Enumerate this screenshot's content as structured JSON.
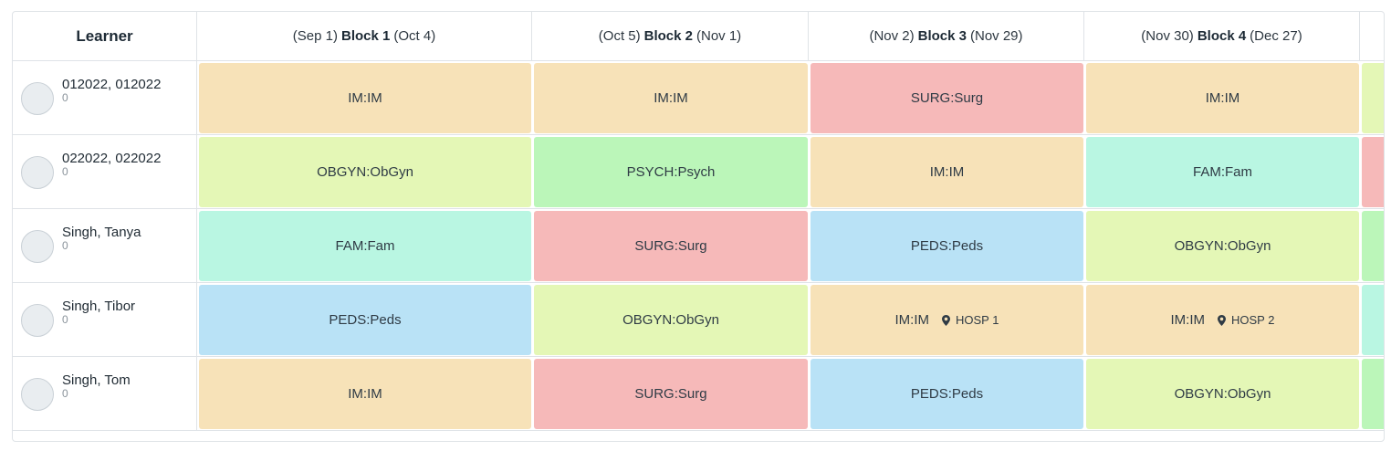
{
  "header": {
    "learner": "Learner",
    "blocks": [
      {
        "start": "(Sep 1)",
        "name": "Block 1",
        "end": "(Oct 4)"
      },
      {
        "start": "(Oct 5)",
        "name": "Block 2",
        "end": "(Nov 1)"
      },
      {
        "start": "(Nov 2)",
        "name": "Block 3",
        "end": "(Nov 29)"
      },
      {
        "start": "(Nov 30)",
        "name": "Block 4",
        "end": "(Dec 27)"
      }
    ]
  },
  "colors": {
    "IM": "#f7e2b8",
    "SURG": "#f6b9b9",
    "OBGYN": "#e4f7b6",
    "PSYCH": "#bbf6b9",
    "FAM": "#b9f6e2",
    "PEDS": "#b9e2f6"
  },
  "icons": {
    "location": "map-pin-icon"
  },
  "rows": [
    {
      "name": "012022, 012022",
      "count": "0",
      "cells": [
        {
          "label": "IM:IM",
          "type": "IM",
          "site": ""
        },
        {
          "label": "IM:IM",
          "type": "IM",
          "site": ""
        },
        {
          "label": "SURG:Surg",
          "type": "SURG",
          "site": ""
        },
        {
          "label": "IM:IM",
          "type": "IM",
          "site": ""
        }
      ],
      "next_type": "OBGYN"
    },
    {
      "name": "022022, 022022",
      "count": "0",
      "cells": [
        {
          "label": "OBGYN:ObGyn",
          "type": "OBGYN",
          "site": ""
        },
        {
          "label": "PSYCH:Psych",
          "type": "PSYCH",
          "site": ""
        },
        {
          "label": "IM:IM",
          "type": "IM",
          "site": ""
        },
        {
          "label": "FAM:Fam",
          "type": "FAM",
          "site": ""
        }
      ],
      "next_type": "SURG"
    },
    {
      "name": "Singh, Tanya",
      "count": "0",
      "cells": [
        {
          "label": "FAM:Fam",
          "type": "FAM",
          "site": ""
        },
        {
          "label": "SURG:Surg",
          "type": "SURG",
          "site": ""
        },
        {
          "label": "PEDS:Peds",
          "type": "PEDS",
          "site": ""
        },
        {
          "label": "OBGYN:ObGyn",
          "type": "OBGYN",
          "site": ""
        }
      ],
      "next_type": "PSYCH"
    },
    {
      "name": "Singh, Tibor",
      "count": "0",
      "cells": [
        {
          "label": "PEDS:Peds",
          "type": "PEDS",
          "site": ""
        },
        {
          "label": "OBGYN:ObGyn",
          "type": "OBGYN",
          "site": ""
        },
        {
          "label": "IM:IM",
          "type": "IM",
          "site": "HOSP 1"
        },
        {
          "label": "IM:IM",
          "type": "IM",
          "site": "HOSP 2"
        }
      ],
      "next_type": "FAM"
    },
    {
      "name": "Singh, Tom",
      "count": "0",
      "cells": [
        {
          "label": "IM:IM",
          "type": "IM",
          "site": ""
        },
        {
          "label": "SURG:Surg",
          "type": "SURG",
          "site": ""
        },
        {
          "label": "PEDS:Peds",
          "type": "PEDS",
          "site": ""
        },
        {
          "label": "OBGYN:ObGyn",
          "type": "OBGYN",
          "site": ""
        }
      ],
      "next_type": "PSYCH"
    }
  ]
}
